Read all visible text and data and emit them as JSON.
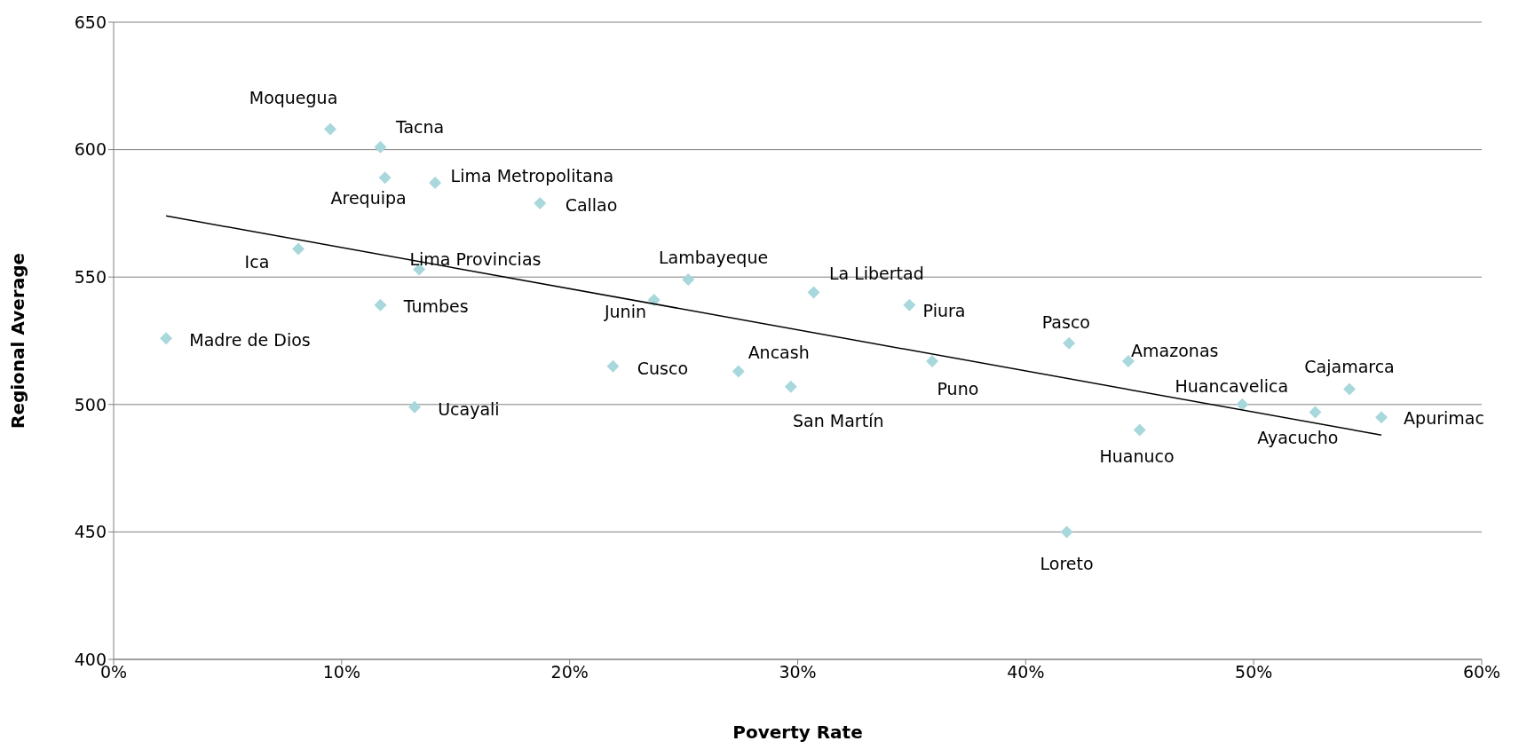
{
  "chart_data": {
    "type": "scatter",
    "xlabel": "Poverty Rate",
    "ylabel": "Regional Average",
    "xlim": [
      0,
      60
    ],
    "xticks": [
      {
        "value": 0,
        "label": "0%"
      },
      {
        "value": 10,
        "label": "10%"
      },
      {
        "value": 20,
        "label": "20%"
      },
      {
        "value": 30,
        "label": "30%"
      },
      {
        "value": 40,
        "label": "40%"
      },
      {
        "value": 50,
        "label": "50%"
      },
      {
        "value": 60,
        "label": "60%"
      }
    ],
    "ylim": [
      400,
      650
    ],
    "yticks": [
      400,
      450,
      500,
      550,
      600,
      650
    ],
    "grid": "y",
    "marker": "diamond",
    "series": [
      {
        "color": "#a8d8dc",
        "x": [
          9.5,
          11.7,
          11.9,
          14.1,
          18.7,
          8.1,
          13.4,
          11.7,
          2.3,
          13.2,
          23.7,
          25.2,
          21.9,
          27.4,
          29.7,
          30.7,
          34.9,
          35.9,
          41.9,
          41.8,
          44.5,
          45.0,
          49.5,
          52.7,
          54.2,
          55.6
        ],
        "values": [
          608,
          601,
          589,
          587,
          579,
          561,
          553,
          539,
          526,
          499,
          541,
          549,
          515,
          513,
          507,
          544,
          539,
          517,
          524,
          450,
          517,
          490,
          500,
          497,
          506,
          495
        ]
      },
      {
        "type": "line",
        "marker": "none",
        "color": "#000000",
        "x": [
          2.3,
          55.6
        ],
        "values": [
          574,
          488
        ]
      }
    ],
    "annotations": [
      {
        "text": "Moquegua",
        "x": 9.5,
        "y": 608
      },
      {
        "text": "Tacna",
        "x": 11.7,
        "y": 601
      },
      {
        "text": "Arequipa",
        "x": 11.9,
        "y": 589
      },
      {
        "text": "Lima Metropolitana",
        "x": 14.1,
        "y": 587
      },
      {
        "text": "Callao",
        "x": 18.7,
        "y": 579
      },
      {
        "text": "Ica",
        "x": 8.1,
        "y": 561
      },
      {
        "text": "Lima Provincias",
        "x": 13.4,
        "y": 553
      },
      {
        "text": "Tumbes",
        "x": 11.7,
        "y": 539
      },
      {
        "text": "Madre de Dios",
        "x": 2.3,
        "y": 526
      },
      {
        "text": "Ucayali",
        "x": 13.2,
        "y": 499
      },
      {
        "text": "Junin",
        "x": 23.7,
        "y": 541
      },
      {
        "text": "Lambayeque",
        "x": 25.2,
        "y": 549
      },
      {
        "text": "Cusco",
        "x": 21.9,
        "y": 515
      },
      {
        "text": "Ancash",
        "x": 27.4,
        "y": 513
      },
      {
        "text": "San Martín",
        "x": 29.7,
        "y": 507
      },
      {
        "text": "La Libertad",
        "x": 30.7,
        "y": 544
      },
      {
        "text": "Piura",
        "x": 34.9,
        "y": 539
      },
      {
        "text": "Puno",
        "x": 35.9,
        "y": 517
      },
      {
        "text": "Pasco",
        "x": 41.9,
        "y": 524
      },
      {
        "text": "Loreto",
        "x": 41.8,
        "y": 450
      },
      {
        "text": "Amazonas",
        "x": 44.5,
        "y": 517
      },
      {
        "text": "Huanuco",
        "x": 45.0,
        "y": 490
      },
      {
        "text": "Huancavelica",
        "x": 49.5,
        "y": 500
      },
      {
        "text": "Ayacucho",
        "x": 52.7,
        "y": 497
      },
      {
        "text": "Cajamarca",
        "x": 54.2,
        "y": 506
      },
      {
        "text": "Apurimac",
        "x": 55.6,
        "y": 495
      }
    ]
  }
}
